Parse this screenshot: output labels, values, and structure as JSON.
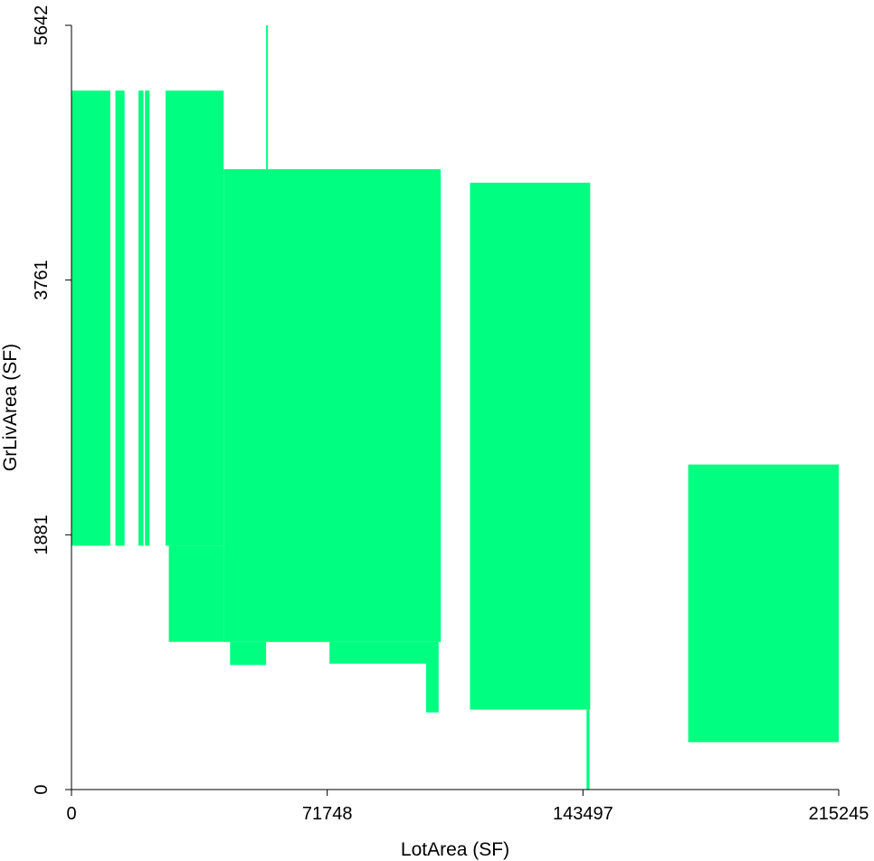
{
  "chart_data": {
    "type": "area",
    "xlabel": "LotArea (SF)",
    "ylabel": "GrLivArea (SF)",
    "xlim": [
      0,
      215245
    ],
    "ylim": [
      0,
      5642
    ],
    "xticks": [
      "0",
      "71748",
      "143497",
      "215245"
    ],
    "yticks": [
      "0",
      "1881",
      "3761",
      "5642"
    ],
    "grid": false,
    "color": "#00FF80",
    "regions": [
      {
        "x0": 0,
        "x1": 10900,
        "y0": 1800,
        "y1": 5160
      },
      {
        "x0": 12300,
        "x1": 14900,
        "y0": 1800,
        "y1": 5160
      },
      {
        "x0": 18800,
        "x1": 20200,
        "y0": 1800,
        "y1": 5160
      },
      {
        "x0": 20600,
        "x1": 21900,
        "y0": 1800,
        "y1": 5160
      },
      {
        "x0": 26400,
        "x1": 42700,
        "y0": 1800,
        "y1": 5160
      },
      {
        "x0": 27300,
        "x1": 42700,
        "y0": 1090,
        "y1": 1800
      },
      {
        "x0": 42700,
        "x1": 103600,
        "y0": 1090,
        "y1": 4580
      },
      {
        "x0": 44500,
        "x1": 54600,
        "y0": 920,
        "y1": 1090
      },
      {
        "x0": 54600,
        "x1": 55100,
        "y0": 4580,
        "y1": 5642
      },
      {
        "x0": 72400,
        "x1": 99500,
        "y0": 930,
        "y1": 1090
      },
      {
        "x0": 99500,
        "x1": 103000,
        "y0": 570,
        "y1": 1090
      },
      {
        "x0": 111800,
        "x1": 145500,
        "y0": 590,
        "y1": 4480
      },
      {
        "x0": 144500,
        "x1": 145300,
        "y0": 0,
        "y1": 590
      },
      {
        "x0": 173000,
        "x1": 215245,
        "y0": 350,
        "y1": 2400
      }
    ]
  }
}
